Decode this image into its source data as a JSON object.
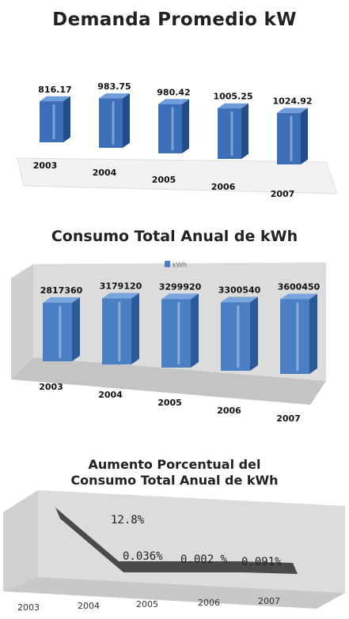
{
  "chart_data": [
    {
      "type": "bar",
      "title": "Demanda Promedio  kW",
      "categories": [
        "2003",
        "2004",
        "2005",
        "2006",
        "2007"
      ],
      "values": [
        816.17,
        983.75,
        980.42,
        1005.25,
        1024.92
      ],
      "labels": [
        "816.17",
        "983.75",
        "980.42",
        "1005.25",
        "1024.92"
      ],
      "ylim": [
        0,
        1100
      ],
      "colors": {
        "bar_front": "#3c6fb8",
        "bar_side": "#234d88",
        "bar_top": "#6f9ddb"
      }
    },
    {
      "type": "bar",
      "title": "Consumo  Total Anual de  kWh",
      "categories": [
        "2003",
        "2004",
        "2005",
        "2006",
        "2007"
      ],
      "series": [
        {
          "name": "kWh",
          "values": [
            2817360,
            3179120,
            3299920,
            3300540,
            3600450
          ]
        }
      ],
      "labels": [
        "2817360",
        "3179120",
        "3299920",
        "3300540",
        "3600450"
      ],
      "legend": "top",
      "ylim": [
        0,
        4000000
      ],
      "colors": {
        "bar_front": "#4a7fc4",
        "bar_side": "#2c5a98",
        "bar_top": "#7aa6dd",
        "wall": "#d8d8d8",
        "floor": "#c4c4c4"
      }
    },
    {
      "type": "line",
      "title": [
        "Aumento  Porcentual del",
        "Consumo Total Anual de kWh"
      ],
      "categories": [
        "2003",
        "2004",
        "2005",
        "2006",
        "2007"
      ],
      "values": [
        null,
        12.8,
        0.036,
        0.002,
        0.091
      ],
      "labels": [
        "12.8%",
        "0.036%",
        "0.002 %",
        "0.091%"
      ],
      "colors": {
        "line": "#4a4a4a",
        "wall": "#dcdcdc",
        "floor": "#c8c8c8"
      }
    }
  ]
}
